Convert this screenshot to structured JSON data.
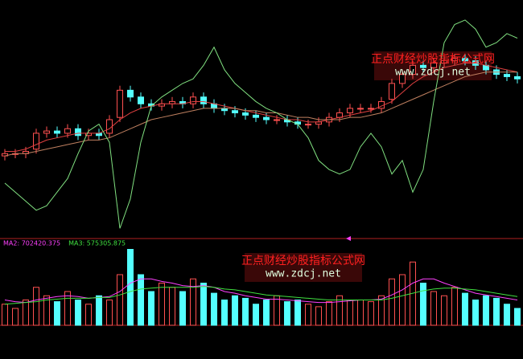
{
  "chart_data": [
    {
      "type": "candlestick",
      "ylim": [
        0,
        100
      ],
      "up_color": "#ff5050",
      "down_color": "#54ffff",
      "open": [
        34,
        35,
        35,
        37,
        44,
        45,
        44,
        46,
        43,
        44,
        44,
        51,
        63,
        60,
        57,
        56,
        57,
        58,
        57,
        60,
        57,
        55,
        54,
        53,
        52,
        51,
        50,
        50,
        49,
        48,
        48,
        49,
        51,
        53,
        55,
        55,
        55,
        59,
        66,
        70,
        74,
        73,
        75,
        76,
        77,
        76,
        74,
        72,
        70,
        69
      ],
      "high": [
        37,
        37,
        38,
        46,
        47,
        47,
        48,
        48,
        46,
        46,
        52,
        65,
        65,
        62,
        59,
        59,
        60,
        60,
        62,
        62,
        59,
        57,
        56,
        55,
        54,
        53,
        52,
        52,
        51,
        50,
        51,
        53,
        55,
        57,
        57,
        57,
        60,
        68,
        72,
        76,
        76,
        77,
        78,
        79,
        79,
        78,
        76,
        74,
        72,
        71
      ],
      "low": [
        32,
        33,
        33,
        35,
        42,
        42,
        42,
        41,
        41,
        41,
        42,
        49,
        58,
        55,
        54,
        54,
        55,
        55,
        55,
        55,
        53,
        52,
        51,
        50,
        49,
        48,
        48,
        47,
        46,
        46,
        46,
        47,
        49,
        51,
        53,
        53,
        53,
        57,
        64,
        68,
        71,
        71,
        73,
        74,
        74,
        72,
        70,
        68,
        67,
        66
      ],
      "close": [
        35,
        35,
        36,
        44,
        45,
        44,
        46,
        43,
        44,
        43,
        50,
        63,
        60,
        57,
        56,
        57,
        58,
        57,
        60,
        57,
        55,
        54,
        53,
        52,
        51,
        50,
        50,
        49,
        48,
        48,
        49,
        51,
        53,
        55,
        55,
        55,
        58,
        66,
        70,
        74,
        73,
        75,
        76,
        77,
        76,
        74,
        72,
        70,
        69,
        68
      ],
      "lines": [
        {
          "color": "#e04040",
          "values": [
            36,
            36,
            37,
            39,
            41,
            42,
            43,
            44,
            44,
            44,
            46,
            50,
            53,
            55,
            56,
            57,
            57,
            57,
            58,
            58,
            57,
            56,
            55,
            54,
            53,
            52,
            51,
            50,
            50,
            49,
            49,
            50,
            51,
            52,
            53,
            54,
            56,
            58,
            62,
            66,
            69,
            71,
            73,
            74,
            75,
            75,
            74,
            73,
            72,
            71
          ]
        },
        {
          "color": "#c08060",
          "values": [
            34,
            35,
            35,
            36,
            37,
            38,
            39,
            40,
            41,
            41,
            42,
            44,
            46,
            48,
            50,
            51,
            52,
            53,
            54,
            55,
            55,
            55,
            55,
            54,
            54,
            53,
            53,
            52,
            51,
            51,
            50,
            50,
            50,
            51,
            51,
            52,
            53,
            55,
            57,
            59,
            61,
            63,
            65,
            67,
            69,
            70,
            71,
            71,
            71,
            71
          ]
        },
        {
          "color": "#80e080",
          "values": [
            22,
            18,
            14,
            10,
            12,
            18,
            24,
            35,
            45,
            48,
            40,
            2,
            15,
            40,
            56,
            60,
            63,
            66,
            68,
            74,
            82,
            72,
            66,
            62,
            58,
            55,
            53,
            50,
            48,
            42,
            32,
            28,
            26,
            28,
            38,
            44,
            38,
            26,
            32,
            18,
            28,
            58,
            84,
            92,
            94,
            90,
            82,
            84,
            88,
            86
          ]
        }
      ],
      "watermark": {
        "title": "正点财经炒股指标公式网",
        "url": "www.zdcj.net"
      }
    },
    {
      "type": "bar",
      "ylim": [
        0,
        100
      ],
      "values": [
        25,
        20,
        30,
        45,
        35,
        28,
        40,
        30,
        25,
        35,
        30,
        60,
        90,
        60,
        40,
        50,
        45,
        40,
        55,
        50,
        38,
        30,
        35,
        32,
        25,
        30,
        35,
        28,
        30,
        25,
        22,
        28,
        35,
        30,
        30,
        28,
        35,
        55,
        60,
        75,
        50,
        40,
        35,
        45,
        38,
        30,
        35,
        32,
        25,
        20
      ],
      "series": [
        {
          "name": "MA2: 702420.375",
          "color": "#ff40ff",
          "values": [
            30,
            28,
            27,
            30,
            32,
            34,
            35,
            34,
            32,
            33,
            34,
            40,
            50,
            55,
            55,
            52,
            50,
            47,
            46,
            47,
            45,
            40,
            38,
            35,
            33,
            31,
            31,
            30,
            29,
            28,
            27,
            27,
            28,
            29,
            30,
            30,
            31,
            36,
            42,
            50,
            55,
            55,
            50,
            46,
            42,
            38,
            36,
            34,
            32,
            30
          ]
        },
        {
          "name": "MA3: 575305.875",
          "color": "#40e040",
          "values": [
            25,
            26,
            27,
            28,
            30,
            31,
            32,
            32,
            32,
            33,
            33,
            36,
            40,
            43,
            44,
            45,
            45,
            45,
            45,
            46,
            45,
            43,
            42,
            40,
            38,
            36,
            35,
            34,
            33,
            32,
            31,
            30,
            30,
            30,
            30,
            30,
            30,
            32,
            35,
            38,
            41,
            43,
            44,
            44,
            43,
            42,
            40,
            38,
            36,
            34
          ]
        }
      ]
    }
  ]
}
